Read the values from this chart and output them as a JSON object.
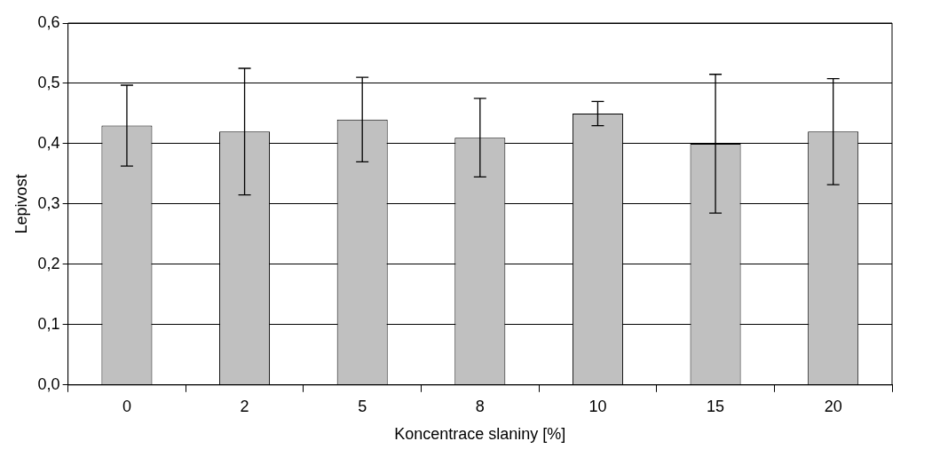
{
  "chart_data": {
    "type": "bar",
    "xlabel": "Koncentrace slaniny [%]",
    "ylabel": "Lepivost",
    "categories": [
      "0",
      "2",
      "5",
      "8",
      "10",
      "15",
      "20"
    ],
    "values": [
      0.43,
      0.42,
      0.44,
      0.41,
      0.45,
      0.4,
      0.42
    ],
    "errors": [
      0.067,
      0.105,
      0.07,
      0.065,
      0.02,
      0.115,
      0.088
    ],
    "color": "#c0c0c0",
    "ylim": [
      0,
      0.6
    ],
    "yticks": [
      {
        "value": 0,
        "label": "0,0"
      },
      {
        "value": 0.1,
        "label": "0,1"
      },
      {
        "value": 0.2,
        "label": "0,2"
      },
      {
        "value": 0.3,
        "label": "0,3"
      },
      {
        "value": 0.4,
        "label": "0,4"
      },
      {
        "value": 0.5,
        "label": "0,5"
      },
      {
        "value": 0.6,
        "label": "0,6"
      }
    ],
    "grid": "y"
  }
}
